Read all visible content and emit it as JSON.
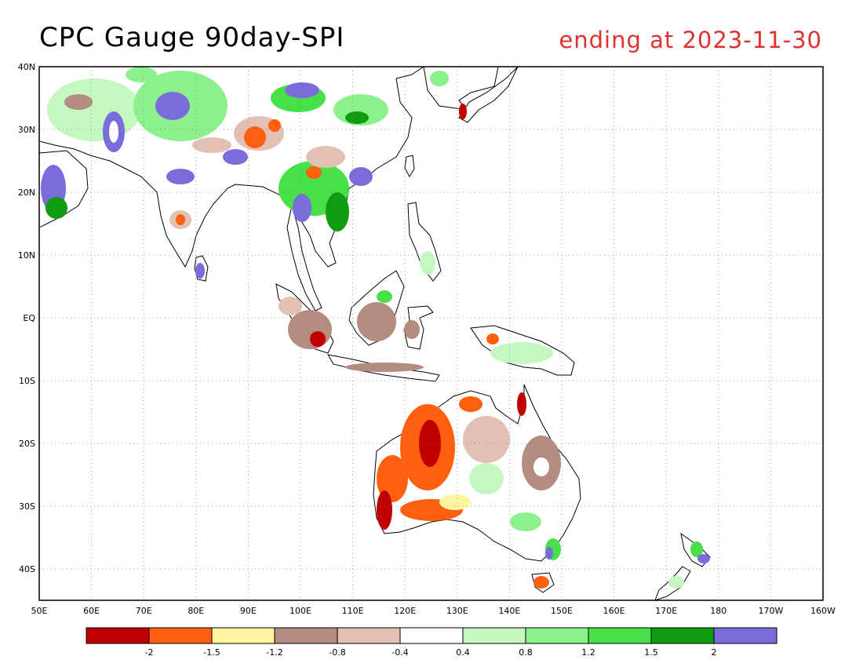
{
  "title": {
    "main": "CPC Gauge 90day-SPI",
    "date": "ending at 2023-11-30"
  },
  "map": {
    "lon_range": [
      50,
      200
    ],
    "lat_range": [
      -45,
      40
    ],
    "lon_ticks": [
      {
        "value": 50,
        "label": "50E"
      },
      {
        "value": 60,
        "label": "60E"
      },
      {
        "value": 70,
        "label": "70E"
      },
      {
        "value": 80,
        "label": "80E"
      },
      {
        "value": 90,
        "label": "90E"
      },
      {
        "value": 100,
        "label": "100E"
      },
      {
        "value": 110,
        "label": "110E"
      },
      {
        "value": 120,
        "label": "120E"
      },
      {
        "value": 130,
        "label": "130E"
      },
      {
        "value": 140,
        "label": "140E"
      },
      {
        "value": 150,
        "label": "150E"
      },
      {
        "value": 160,
        "label": "160E"
      },
      {
        "value": 170,
        "label": "170E"
      },
      {
        "value": 180,
        "label": "180"
      },
      {
        "value": 190,
        "label": "170W"
      },
      {
        "value": 200,
        "label": "160W"
      }
    ],
    "lat_ticks": [
      {
        "value": 40,
        "label": "40N"
      },
      {
        "value": 30,
        "label": "30N"
      },
      {
        "value": 20,
        "label": "20N"
      },
      {
        "value": 10,
        "label": "10N"
      },
      {
        "value": 0,
        "label": "EQ"
      },
      {
        "value": -10,
        "label": "10S"
      },
      {
        "value": -20,
        "label": "20S"
      },
      {
        "value": -30,
        "label": "30S"
      },
      {
        "value": -40,
        "label": "40S"
      }
    ],
    "grid": "dotted"
  },
  "legend": {
    "colors": [
      "#c00000",
      "#ff6010",
      "#fff5a0",
      "#b48c80",
      "#e2c0b4",
      "#ffffff",
      "#c4f8c0",
      "#8cf08c",
      "#48e048",
      "#109c10",
      "#7b6cdc"
    ],
    "ticks": [
      "-2",
      "-1.5",
      "-1.2",
      "-0.8",
      "-0.4",
      "0.4",
      "0.8",
      "1.2",
      "1.5",
      "2"
    ]
  },
  "colors": {
    "land_normal": "#ffffff",
    "coast": "#000000",
    "title_date": "#e03030"
  }
}
